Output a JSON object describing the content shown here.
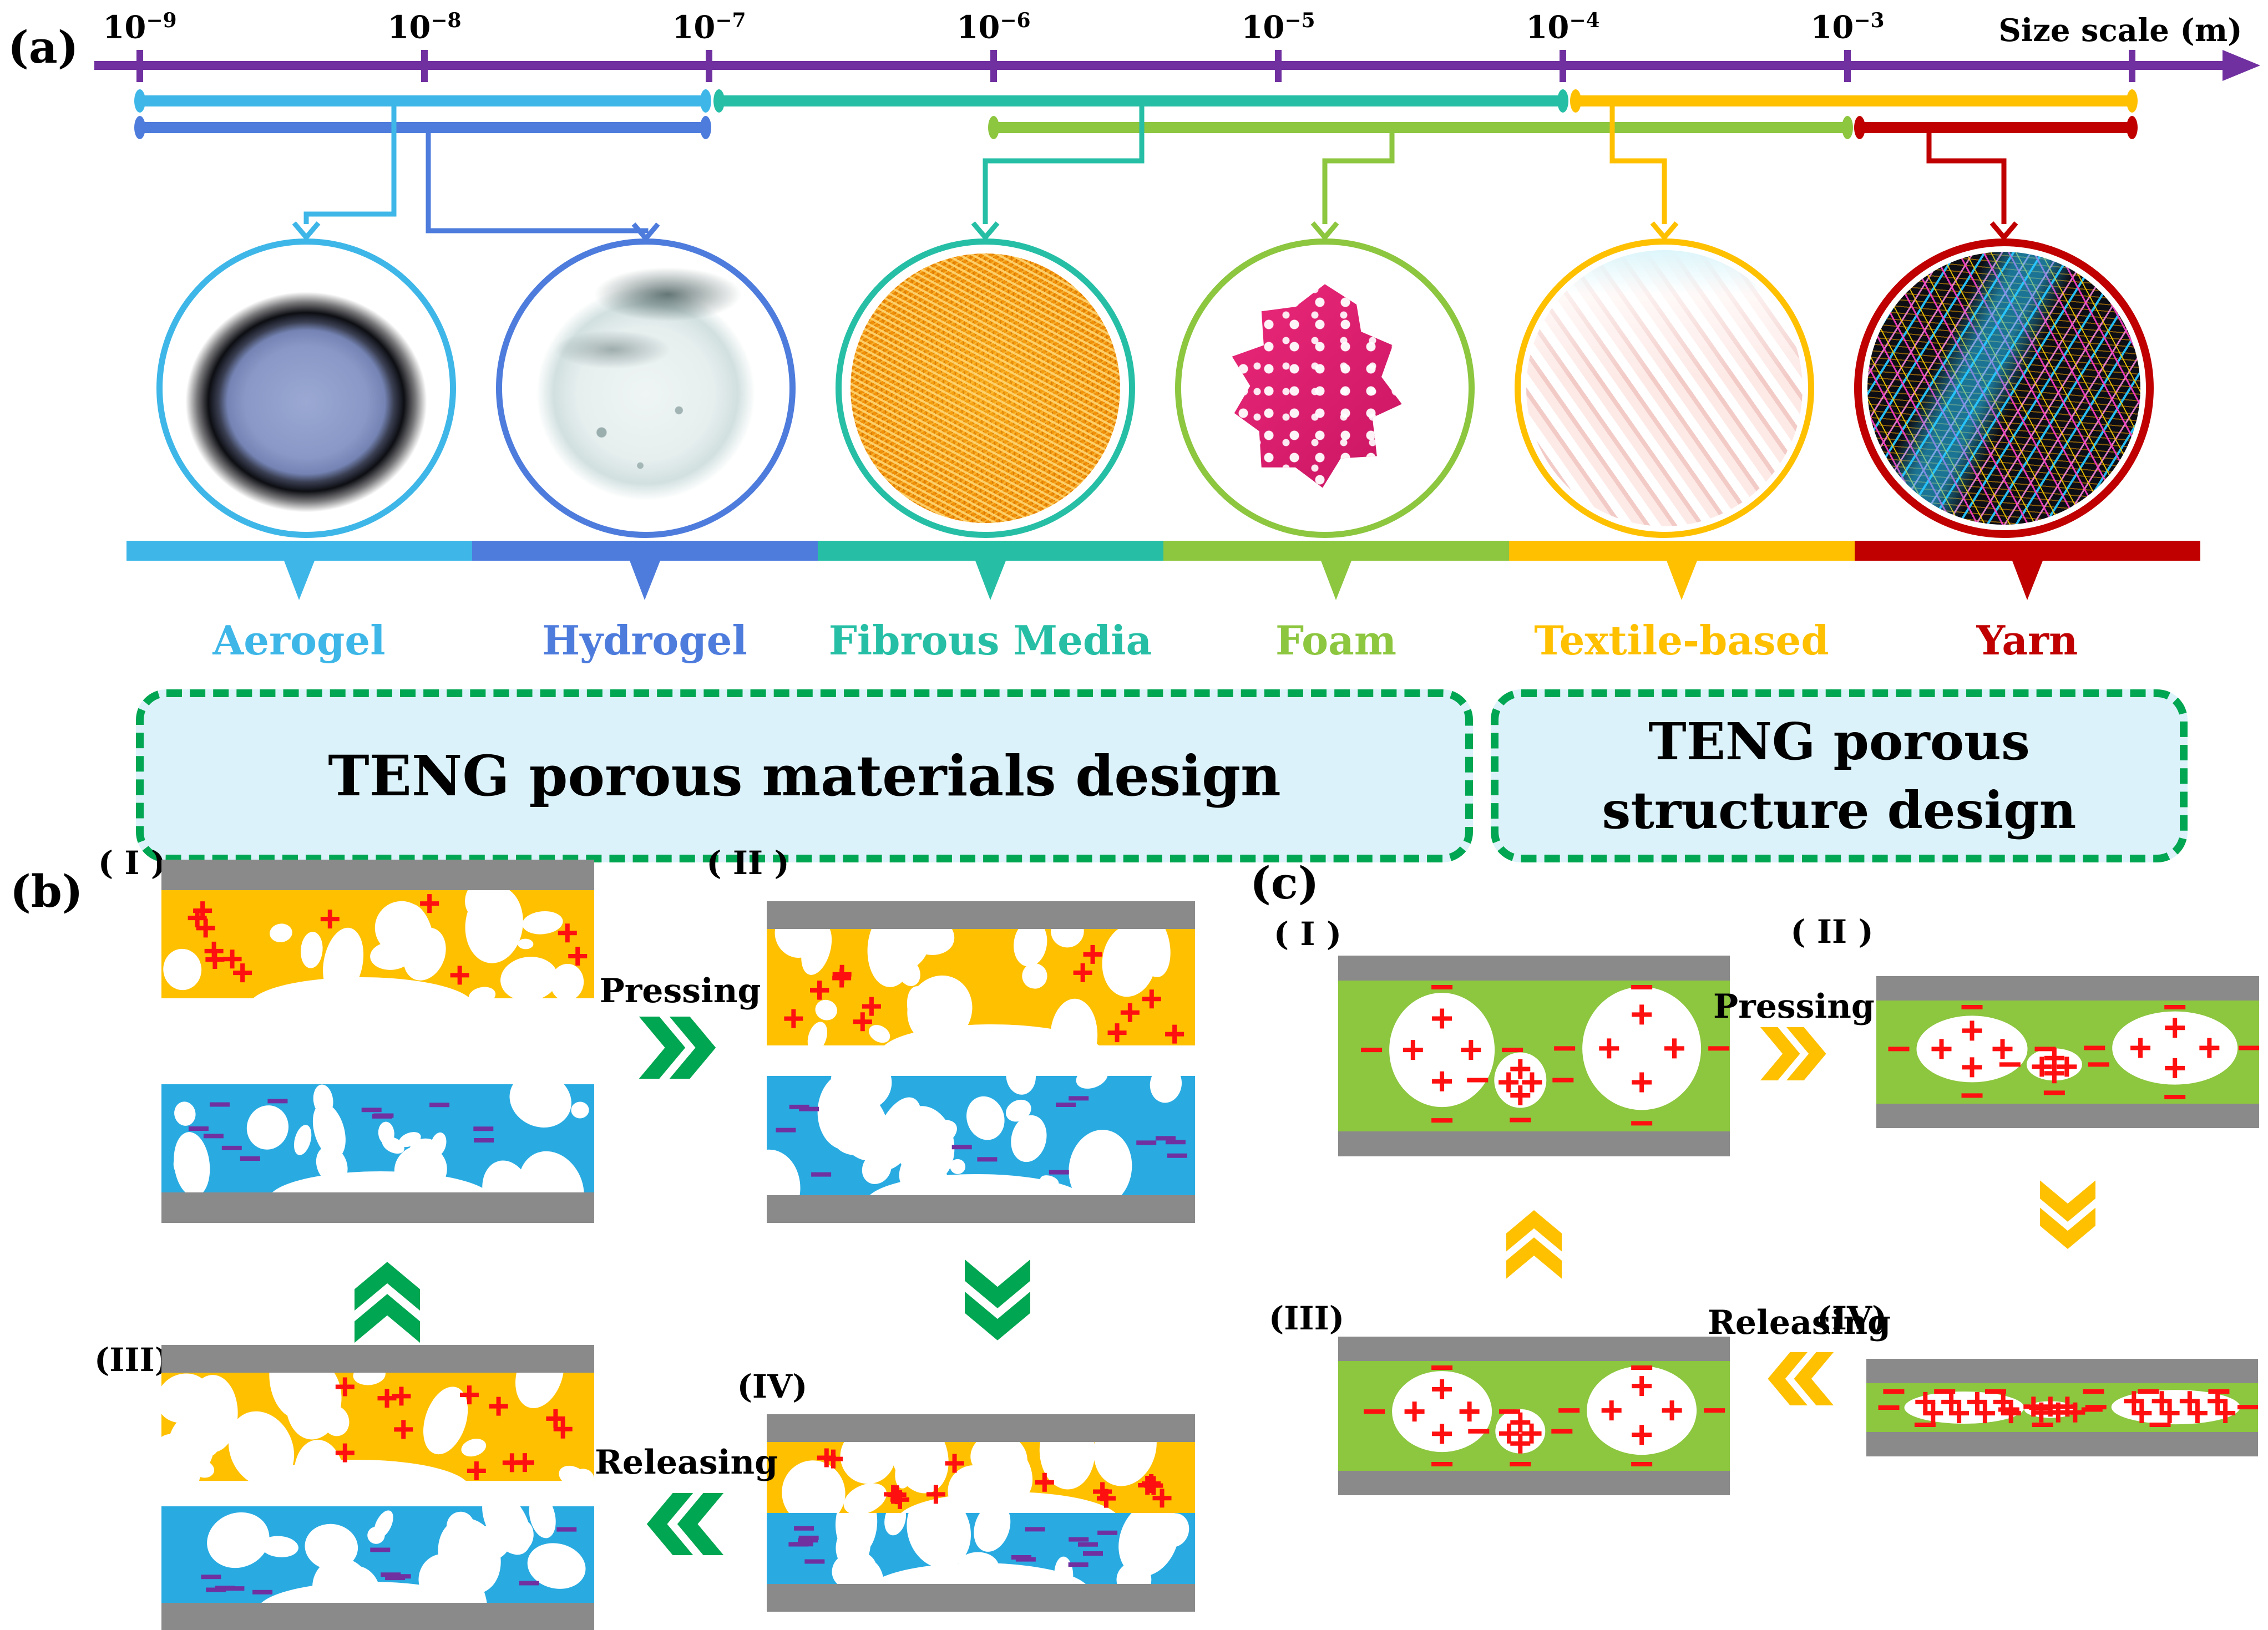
{
  "panel_a": {
    "label": "(a)",
    "axis": {
      "title": "Size scale (m)",
      "color": "#7030A0",
      "ticks": [
        {
          "base": "10",
          "exp": "−9"
        },
        {
          "base": "10",
          "exp": "−8"
        },
        {
          "base": "10",
          "exp": "−7"
        },
        {
          "base": "10",
          "exp": "−6"
        },
        {
          "base": "10",
          "exp": "−5"
        },
        {
          "base": "10",
          "exp": "−4"
        },
        {
          "base": "10",
          "exp": "−3"
        }
      ]
    },
    "materials": [
      {
        "name": "Aerogel",
        "color": "#3EB7E8",
        "size_range": {
          "from": "10^-9 m",
          "to": "10^-7 m"
        }
      },
      {
        "name": "Hydrogel",
        "color": "#4E7CDD",
        "size_range": {
          "from": "10^-9 m",
          "to": "10^-7 m"
        }
      },
      {
        "name": "Fibrous Media",
        "color": "#26BFA6",
        "size_range": {
          "from": "10^-7 m",
          "to": "10^-4 m"
        }
      },
      {
        "name": "Foam",
        "color": "#8DC63F",
        "size_range": {
          "from": "10^-6 m",
          "to": "10^-3 m"
        }
      },
      {
        "name": "Textile-based",
        "color": "#FFC000",
        "size_range": {
          "from": "10^-4 m",
          "to": "10^-2 m"
        }
      },
      {
        "name": "Yarn",
        "color": "#C00000",
        "size_range": {
          "from": "10^-3 m",
          "to": "10^-2 m"
        }
      }
    ],
    "design_boxes": {
      "materials": "TENG porous materials design",
      "structure": "TENG porous structure design",
      "border_color": "#00A651",
      "fill_color": "#DCF2FA"
    }
  },
  "panel_b": {
    "label": "(b)",
    "states": [
      "( I )",
      "( II )",
      "(III)",
      "(IV)"
    ],
    "pressing_label": "Pressing",
    "releasing_label": "Releasing",
    "top_layer_color": "#FFC000",
    "bottom_layer_color": "#29ABE2",
    "electrode_color": "#8A8A8A",
    "positive_charge_color": "#FF1010",
    "negative_charge_color": "#7030A0",
    "arrow_color": "#00A651"
  },
  "panel_c": {
    "label": "(c)",
    "states": [
      "( I )",
      "( II )",
      "(III)",
      "(IV)"
    ],
    "pressing_label": "Pressing",
    "releasing_label": "Releasing",
    "layer_color": "#8DC63F",
    "electrode_color": "#8A8A8A",
    "charge_color": "#FF1010",
    "arrow_color": "#FFC000"
  }
}
